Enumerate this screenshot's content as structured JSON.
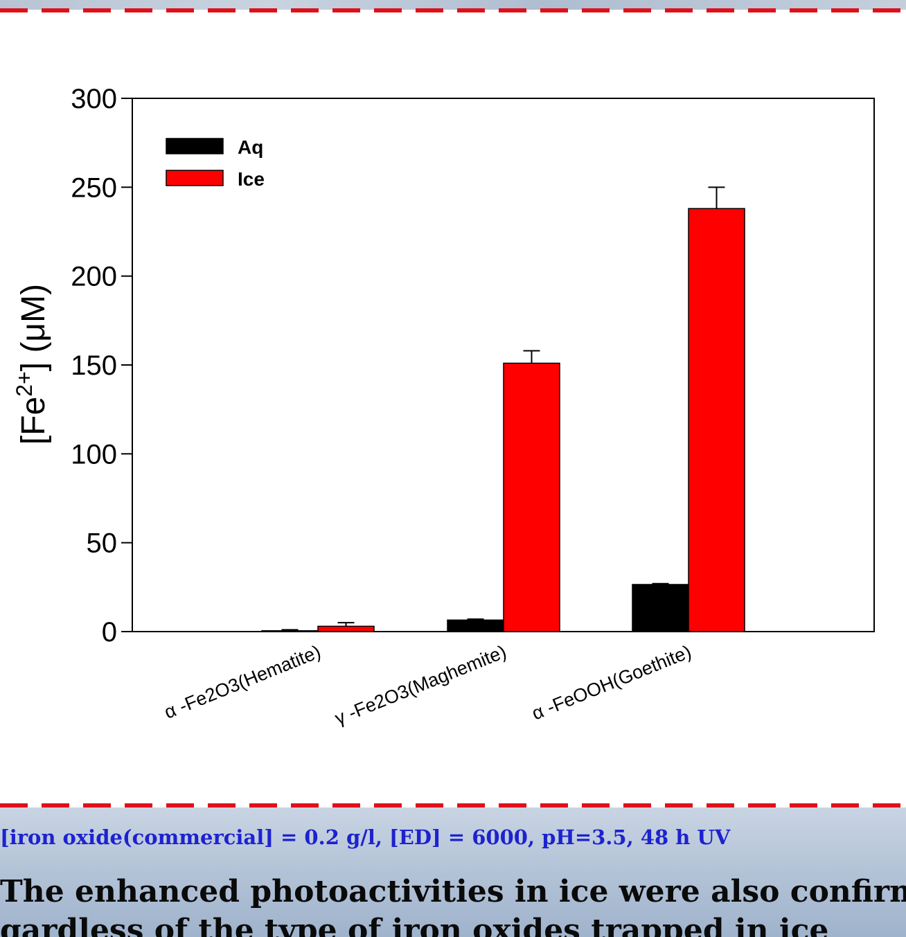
{
  "chart_data": {
    "type": "bar",
    "categories": [
      "α -Fe2O3(Hematite)",
      "γ -Fe2O3(Maghemite)",
      "α -FeOOH(Goethite)"
    ],
    "series": [
      {
        "name": "Aq",
        "values": [
          0.5,
          6.5,
          26.5
        ],
        "errors": [
          0.5,
          0.5,
          0.5
        ],
        "color": "#000000"
      },
      {
        "name": "Ice",
        "values": [
          3,
          151,
          238
        ],
        "errors": [
          2,
          7,
          12
        ],
        "color": "#ff0000"
      }
    ],
    "ylabel_main": "[Fe",
    "ylabel_sup": "2+",
    "ylabel_tail": "] (μM)",
    "ylim": [
      0,
      300
    ],
    "yticks": [
      "0",
      "50",
      "100",
      "150",
      "200",
      "250",
      "300"
    ],
    "legend_position": "top-left",
    "grid": false
  },
  "conditions_text": "[iron oxide(commercial] = 0.2 g/l, [ED] = 6000,  pH=3.5, 48 h UV",
  "conclusion_line1": "The enhanced photoactivities in ice were also confirm",
  "conclusion_line2": "gardless of the type of iron oxides trapped in ice"
}
